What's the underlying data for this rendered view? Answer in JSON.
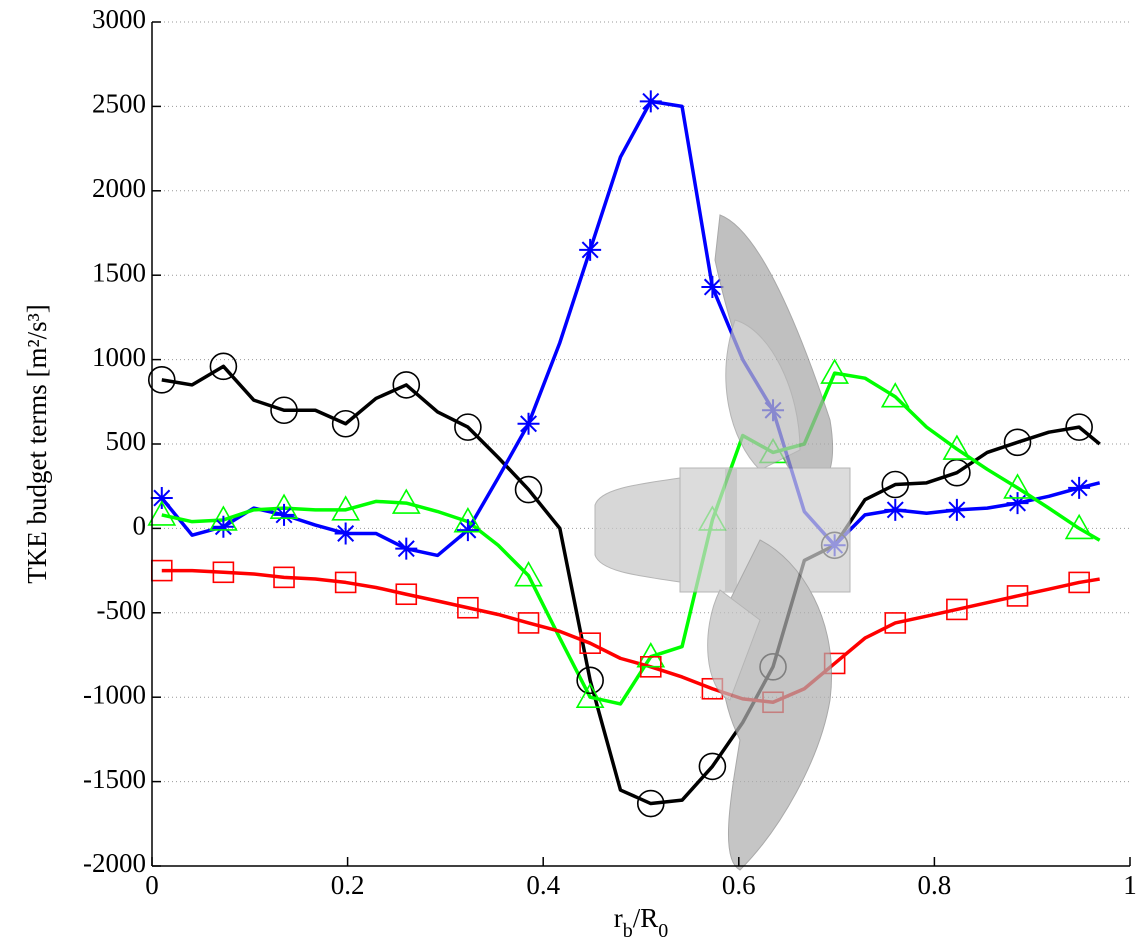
{
  "chart_data": {
    "type": "line",
    "ylabel": "TKE budget terms [m²/s³]",
    "xlabel_parts": [
      {
        "text": "r"
      },
      {
        "text": "b",
        "sub": true
      },
      {
        "text": "/R"
      },
      {
        "text": "0",
        "sub": true
      }
    ],
    "x": [
      0.01,
      0.041,
      0.073,
      0.104,
      0.135,
      0.167,
      0.198,
      0.229,
      0.26,
      0.292,
      0.323,
      0.354,
      0.385,
      0.417,
      0.448,
      0.479,
      0.51,
      0.542,
      0.573,
      0.604,
      0.635,
      0.667,
      0.698,
      0.729,
      0.76,
      0.792,
      0.823,
      0.854,
      0.885,
      0.917,
      0.948,
      0.969
    ],
    "marker_every": 2,
    "series": [
      {
        "color": "#000000",
        "marker": "circle",
        "values": [
          880,
          850,
          960,
          760,
          700,
          700,
          620,
          770,
          850,
          690,
          600,
          420,
          230,
          0,
          -900,
          -1550,
          -1630,
          -1610,
          -1410,
          -1150,
          -820,
          -190,
          -100,
          170,
          260,
          270,
          330,
          450,
          510,
          570,
          600,
          500
        ]
      },
      {
        "color": "#0000ff",
        "marker": "star",
        "values": [
          180,
          -40,
          10,
          120,
          80,
          20,
          -30,
          -30,
          -120,
          -160,
          -10,
          300,
          620,
          1100,
          1650,
          2200,
          2530,
          2500,
          1430,
          1000,
          700,
          100,
          -100,
          80,
          110,
          90,
          110,
          120,
          150,
          190,
          240,
          270
        ]
      },
      {
        "color": "#00ff00",
        "marker": "triangle",
        "values": [
          80,
          40,
          50,
          110,
          120,
          110,
          110,
          160,
          150,
          100,
          40,
          -100,
          -280,
          -650,
          -1000,
          -1040,
          -760,
          -700,
          50,
          550,
          450,
          500,
          920,
          890,
          780,
          600,
          470,
          350,
          240,
          120,
          0,
          -70
        ]
      },
      {
        "color": "#ff0000",
        "marker": "square",
        "values": [
          -250,
          -250,
          -260,
          -270,
          -290,
          -300,
          -320,
          -350,
          -390,
          -430,
          -470,
          -510,
          -560,
          -610,
          -680,
          -770,
          -820,
          -880,
          -950,
          -1010,
          -1030,
          -950,
          -800,
          -650,
          -560,
          -520,
          -480,
          -440,
          -400,
          -360,
          -320,
          -300
        ]
      }
    ],
    "xlim": [
      0,
      1
    ],
    "xticks": [
      0,
      0.2,
      0.4,
      0.6,
      0.8,
      1
    ],
    "ylim": [
      -2000,
      3000
    ],
    "yticks": [
      -2000,
      -1500,
      -1000,
      -500,
      0,
      500,
      1000,
      1500,
      2000,
      2500,
      3000
    ],
    "grid": "y"
  }
}
